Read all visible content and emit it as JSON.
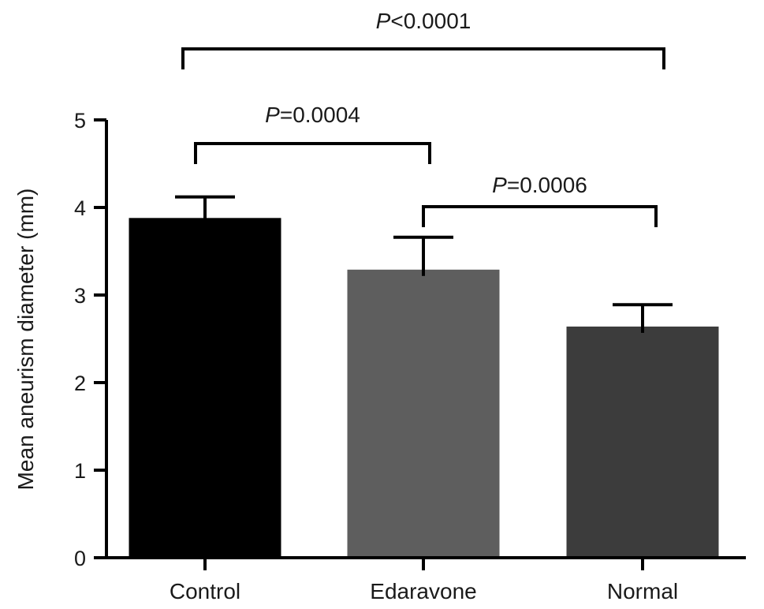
{
  "chart_data": {
    "type": "bar",
    "title": "",
    "xlabel": "",
    "ylabel": "Mean aneurism diameter (mm)",
    "ylim": [
      0,
      5
    ],
    "yticks": [
      "0",
      "1",
      "2",
      "3",
      "4",
      "5"
    ],
    "grid": false,
    "categories": [
      "Control",
      "Edaravone",
      "Normal"
    ],
    "series": [
      {
        "values": [
          3.88,
          3.29,
          2.64
        ],
        "error": [
          0.24,
          0.37,
          0.25
        ],
        "colors": [
          "#000000",
          "#5e5e5e",
          "#3c3c3c"
        ]
      }
    ],
    "annotations": [
      {
        "from": 0,
        "to": 2,
        "p_symbol": "P",
        "p_rest": "<0.0001"
      },
      {
        "from": 0,
        "to": 1,
        "p_symbol": "P",
        "p_rest": "=0.0004"
      },
      {
        "from": 1,
        "to": 2,
        "p_symbol": "P",
        "p_rest": "=0.0006"
      }
    ]
  }
}
